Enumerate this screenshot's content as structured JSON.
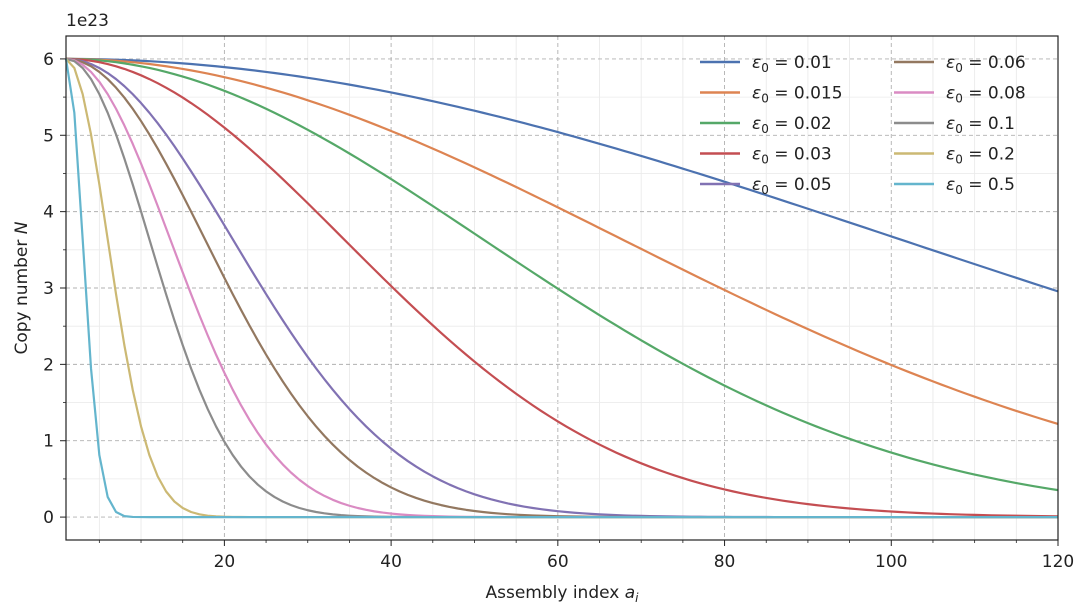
{
  "chart_data": {
    "type": "line",
    "xlabel_prefix": "Assembly index ",
    "xlabel_var": "a",
    "xlabel_sub": "i",
    "ylabel_prefix": "Copy number ",
    "ylabel_var": "N",
    "y_offset_label": "1e23",
    "xlim": [
      1,
      120
    ],
    "ylim": [
      -0.3,
      6.3
    ],
    "x_major_ticks": [
      20,
      40,
      60,
      80,
      100,
      120
    ],
    "x_tick_labels": [
      "20",
      "40",
      "60",
      "80",
      "100",
      "120"
    ],
    "y_major_ticks": [
      0,
      1,
      2,
      3,
      4,
      5,
      6
    ],
    "y_tick_labels": [
      "0",
      "1",
      "2",
      "3",
      "4",
      "5",
      "6"
    ],
    "grid": true,
    "legend_position": "top-right",
    "legend_symbol": "ε",
    "legend_sub": "0",
    "legend_eq": " = ",
    "curve_model": "N = 6e23 * exp(-(eps*(a-1))^2 / 2)",
    "peak": 6.0,
    "series": [
      {
        "name": "0.01",
        "eps": 0.01,
        "color": "#4c72b0"
      },
      {
        "name": "0.015",
        "eps": 0.015,
        "color": "#dd8452"
      },
      {
        "name": "0.02",
        "eps": 0.02,
        "color": "#55a868"
      },
      {
        "name": "0.03",
        "eps": 0.03,
        "color": "#c44e52"
      },
      {
        "name": "0.05",
        "eps": 0.05,
        "color": "#8172b3"
      },
      {
        "name": "0.06",
        "eps": 0.06,
        "color": "#937860"
      },
      {
        "name": "0.08",
        "eps": 0.08,
        "color": "#da8bc3"
      },
      {
        "name": "0.1",
        "eps": 0.1,
        "color": "#8c8c8c"
      },
      {
        "name": "0.2",
        "eps": 0.2,
        "color": "#ccb974"
      },
      {
        "name": "0.5",
        "eps": 0.5,
        "color": "#64b5cd"
      }
    ]
  }
}
